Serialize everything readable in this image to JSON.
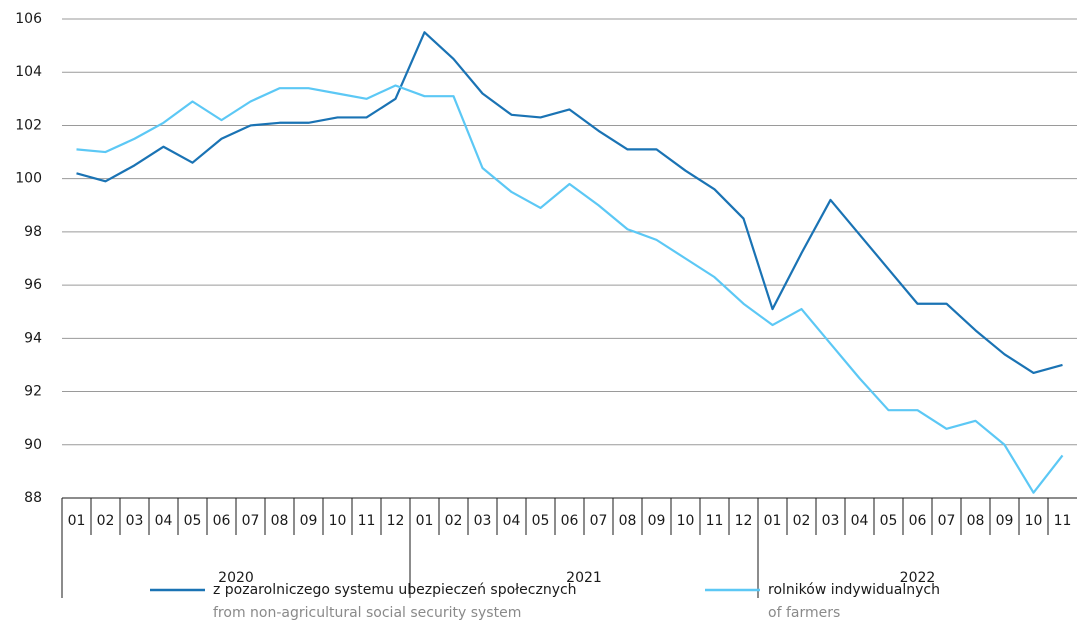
{
  "chart_data": {
    "type": "line",
    "categories": [
      "01",
      "02",
      "03",
      "04",
      "05",
      "06",
      "07",
      "08",
      "09",
      "10",
      "11",
      "12",
      "01",
      "02",
      "03",
      "04",
      "05",
      "06",
      "07",
      "08",
      "09",
      "10",
      "11",
      "12",
      "01",
      "02",
      "03",
      "04",
      "05",
      "06",
      "07",
      "08",
      "09",
      "10",
      "11"
    ],
    "category_groups": [
      {
        "label": "2020",
        "size": 12
      },
      {
        "label": "2021",
        "size": 12
      },
      {
        "label": "2022",
        "size": 11
      }
    ],
    "ylim": [
      88,
      106
    ],
    "yticks": [
      88,
      90,
      92,
      94,
      96,
      98,
      100,
      102,
      104,
      106
    ],
    "grid": true,
    "series": [
      {
        "name": "z pozarolniczego systemu ubezpieczeń społecznych",
        "name_en": "from non-agricultural social security system",
        "color": "#1a73b4",
        "values": [
          100.2,
          99.9,
          100.5,
          101.2,
          100.6,
          101.5,
          102.0,
          102.1,
          102.1,
          102.3,
          102.3,
          103.0,
          105.5,
          104.5,
          103.2,
          102.4,
          102.3,
          102.6,
          101.8,
          101.1,
          101.1,
          100.3,
          99.6,
          98.5,
          95.1,
          97.2,
          99.2,
          97.9,
          96.6,
          95.3,
          95.3,
          94.3,
          93.4,
          92.7,
          93.0
        ]
      },
      {
        "name": "rolników indywidualnych",
        "name_en": "of farmers",
        "color": "#5cc8f5",
        "values": [
          101.1,
          101.0,
          101.5,
          102.1,
          102.9,
          102.2,
          102.9,
          103.4,
          103.4,
          103.2,
          103.0,
          103.5,
          103.1,
          103.1,
          100.4,
          99.5,
          98.9,
          99.8,
          99.0,
          98.1,
          97.7,
          97.0,
          96.3,
          95.3,
          94.5,
          95.1,
          93.8,
          92.5,
          91.3,
          91.3,
          90.6,
          90.9,
          90.0,
          88.2,
          89.6
        ]
      }
    ]
  }
}
